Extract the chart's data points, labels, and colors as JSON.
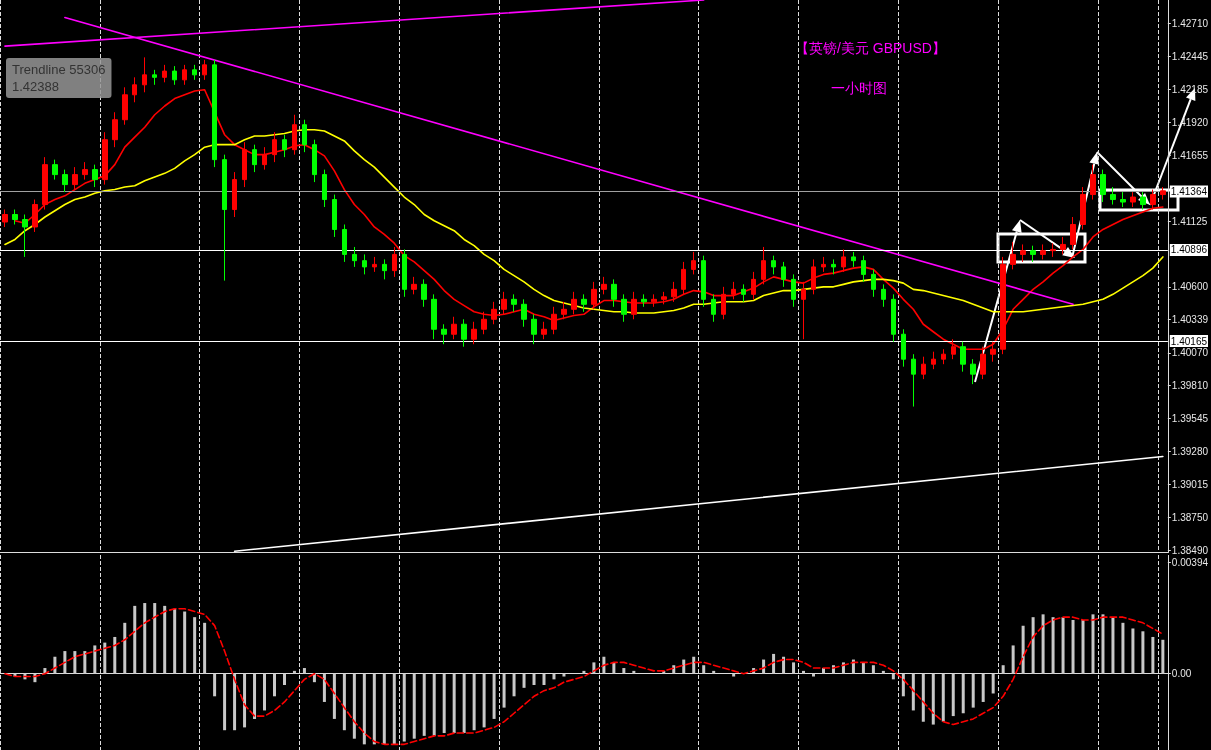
{
  "chart_data": [
    {
      "type": "candlestick",
      "title": "【英镑/美元 GBPUSD】",
      "subtitle": "一小时图",
      "annotations": [
        "Trendline 55306\n1.42388"
      ],
      "categories": [
        null,
        null,
        null,
        null,
        null,
        null,
        null,
        null,
        null,
        null,
        null,
        null,
        null,
        null,
        null,
        null,
        null,
        null,
        null,
        null,
        null,
        null,
        null,
        null,
        null,
        null,
        null,
        null,
        null,
        null,
        null,
        null,
        null,
        null,
        null,
        null,
        null,
        null,
        null,
        null,
        null,
        null,
        null,
        null,
        null,
        null,
        null,
        null,
        null,
        null,
        null,
        null,
        null,
        null,
        null,
        null,
        null,
        null,
        null,
        null,
        null,
        null,
        null,
        null,
        null,
        null,
        null,
        null,
        null,
        null,
        null,
        null,
        null,
        null,
        null,
        null,
        null,
        null,
        null,
        null,
        null,
        null,
        null,
        null,
        null,
        null,
        null,
        null,
        null,
        null,
        null,
        null,
        null,
        null,
        null,
        null,
        null,
        null,
        null,
        null,
        null,
        null,
        null,
        null,
        null,
        null,
        null,
        null,
        null,
        null,
        null,
        null,
        null,
        null,
        null,
        null,
        null
      ],
      "ohlc": [
        [
          1.4112,
          1.4122,
          1.4108,
          1.4118
        ],
        [
          1.4118,
          1.4122,
          1.411,
          1.4114
        ],
        [
          1.4114,
          1.4118,
          1.4084,
          1.4108
        ],
        [
          1.4108,
          1.413,
          1.4104,
          1.4126
        ],
        [
          1.4126,
          1.4164,
          1.4122,
          1.4158
        ],
        [
          1.4158,
          1.4162,
          1.4146,
          1.415
        ],
        [
          1.415,
          1.4154,
          1.4136,
          1.4142
        ],
        [
          1.4142,
          1.4156,
          1.4138,
          1.415
        ],
        [
          1.415,
          1.416,
          1.4146,
          1.4154
        ],
        [
          1.4154,
          1.4158,
          1.414,
          1.4146
        ],
        [
          1.4146,
          1.4184,
          1.4142,
          1.4178
        ],
        [
          1.4178,
          1.42,
          1.4172,
          1.4194
        ],
        [
          1.4194,
          1.422,
          1.419,
          1.4214
        ],
        [
          1.4214,
          1.4228,
          1.4208,
          1.4222
        ],
        [
          1.4222,
          1.4244,
          1.4216,
          1.423
        ],
        [
          1.423,
          1.4234,
          1.4222,
          1.4228
        ],
        [
          1.4228,
          1.4238,
          1.4224,
          1.4233
        ],
        [
          1.4233,
          1.4237,
          1.4222,
          1.4226
        ],
        [
          1.4226,
          1.4238,
          1.4222,
          1.4234
        ],
        [
          1.4234,
          1.4238,
          1.4226,
          1.423
        ],
        [
          1.423,
          1.4242,
          1.4226,
          1.4238
        ],
        [
          1.4238,
          1.4242,
          1.4156,
          1.4162
        ],
        [
          1.4162,
          1.4166,
          1.4065,
          1.4122
        ],
        [
          1.4122,
          1.4152,
          1.4116,
          1.4146
        ],
        [
          1.4146,
          1.4176,
          1.414,
          1.417
        ],
        [
          1.417,
          1.4174,
          1.4152,
          1.4158
        ],
        [
          1.4158,
          1.4172,
          1.4154,
          1.4166
        ],
        [
          1.4166,
          1.4184,
          1.416,
          1.4178
        ],
        [
          1.4178,
          1.4182,
          1.4164,
          1.417
        ],
        [
          1.417,
          1.4198,
          1.4166,
          1.419
        ],
        [
          1.419,
          1.4194,
          1.4168,
          1.4174
        ],
        [
          1.4174,
          1.4178,
          1.4144,
          1.415
        ],
        [
          1.415,
          1.4154,
          1.4124,
          1.413
        ],
        [
          1.413,
          1.4134,
          1.41,
          1.4106
        ],
        [
          1.4106,
          1.411,
          1.408,
          1.4086
        ],
        [
          1.4086,
          1.4092,
          1.4076,
          1.4081
        ],
        [
          1.4081,
          1.4086,
          1.407,
          1.4076
        ],
        [
          1.4076,
          1.4084,
          1.4072,
          1.4078
        ],
        [
          1.4078,
          1.4082,
          1.4066,
          1.4073
        ],
        [
          1.4073,
          1.4092,
          1.4068,
          1.4086
        ],
        [
          1.4086,
          1.409,
          1.4052,
          1.4058
        ],
        [
          1.4058,
          1.4068,
          1.4054,
          1.4062
        ],
        [
          1.4062,
          1.4066,
          1.4044,
          1.405
        ],
        [
          1.405,
          1.4054,
          1.4018,
          1.4026
        ],
        [
          1.4026,
          1.403,
          1.4014,
          1.4022
        ],
        [
          1.4022,
          1.4036,
          1.4018,
          1.403
        ],
        [
          1.403,
          1.4034,
          1.4012,
          1.4018
        ],
        [
          1.4018,
          1.4032,
          1.4014,
          1.4026
        ],
        [
          1.4026,
          1.404,
          1.4022,
          1.4034
        ],
        [
          1.4034,
          1.4048,
          1.403,
          1.4042
        ],
        [
          1.4042,
          1.4056,
          1.4038,
          1.405
        ],
        [
          1.405,
          1.4054,
          1.404,
          1.4046
        ],
        [
          1.4046,
          1.405,
          1.4028,
          1.4034
        ],
        [
          1.4034,
          1.4038,
          1.4014,
          1.4022
        ],
        [
          1.4022,
          1.4032,
          1.4018,
          1.4026
        ],
        [
          1.4026,
          1.4044,
          1.4022,
          1.4038
        ],
        [
          1.4038,
          1.4048,
          1.4034,
          1.4042
        ],
        [
          1.4042,
          1.4056,
          1.4038,
          1.405
        ],
        [
          1.405,
          1.4054,
          1.404,
          1.4046
        ],
        [
          1.4046,
          1.4064,
          1.4042,
          1.4058
        ],
        [
          1.4058,
          1.4068,
          1.4054,
          1.4062
        ],
        [
          1.4062,
          1.4066,
          1.4044,
          1.405
        ],
        [
          1.405,
          1.4054,
          1.4032,
          1.4038
        ],
        [
          1.4038,
          1.4056,
          1.4034,
          1.405
        ],
        [
          1.405,
          1.4054,
          1.4044,
          1.4048
        ],
        [
          1.4048,
          1.4054,
          1.4044,
          1.405
        ],
        [
          1.405,
          1.4056,
          1.4046,
          1.4052
        ],
        [
          1.4052,
          1.4064,
          1.4048,
          1.4058
        ],
        [
          1.4058,
          1.408,
          1.4054,
          1.4074
        ],
        [
          1.4074,
          1.4088,
          1.407,
          1.4081
        ],
        [
          1.4081,
          1.4085,
          1.4044,
          1.405
        ],
        [
          1.405,
          1.4054,
          1.4032,
          1.4038
        ],
        [
          1.4038,
          1.406,
          1.4034,
          1.4054
        ],
        [
          1.4054,
          1.4064,
          1.405,
          1.4058
        ],
        [
          1.4058,
          1.4062,
          1.4048,
          1.4054
        ],
        [
          1.4054,
          1.4072,
          1.405,
          1.4066
        ],
        [
          1.4066,
          1.4092,
          1.4062,
          1.4081
        ],
        [
          1.4081,
          1.4085,
          1.407,
          1.4076
        ],
        [
          1.4076,
          1.408,
          1.406,
          1.4066
        ],
        [
          1.4066,
          1.407,
          1.4044,
          1.405
        ],
        [
          1.405,
          1.4064,
          1.4018,
          1.4058
        ],
        [
          1.4058,
          1.4082,
          1.4054,
          1.4076
        ],
        [
          1.4076,
          1.4084,
          1.4072,
          1.4078
        ],
        [
          1.4078,
          1.4082,
          1.407,
          1.4076
        ],
        [
          1.4076,
          1.409,
          1.4072,
          1.4084
        ],
        [
          1.4084,
          1.4088,
          1.4076,
          1.4081
        ],
        [
          1.4081,
          1.4085,
          1.4064,
          1.407
        ],
        [
          1.407,
          1.4074,
          1.4052,
          1.4058
        ],
        [
          1.4058,
          1.4062,
          1.4044,
          1.405
        ],
        [
          1.405,
          1.4054,
          1.4016,
          1.4022
        ],
        [
          1.4022,
          1.4026,
          1.3996,
          1.4002
        ],
        [
          1.4002,
          1.4006,
          1.3964,
          1.399
        ],
        [
          1.399,
          1.4004,
          1.3986,
          1.3998
        ],
        [
          1.3998,
          1.4008,
          1.3994,
          1.4002
        ],
        [
          1.4002,
          1.401,
          1.3998,
          1.4006
        ],
        [
          1.4006,
          1.4018,
          1.4002,
          1.4012
        ],
        [
          1.4012,
          1.4016,
          1.3992,
          1.3998
        ],
        [
          1.3998,
          1.4002,
          1.3982,
          1.399
        ],
        [
          1.399,
          1.4012,
          1.3986,
          1.4006
        ],
        [
          1.4006,
          1.4016,
          1.4,
          1.401
        ],
        [
          1.401,
          1.4084,
          1.4006,
          1.4078
        ],
        [
          1.4078,
          1.4096,
          1.4074,
          1.4086
        ],
        [
          1.4086,
          1.4094,
          1.408,
          1.4089
        ],
        [
          1.4089,
          1.4093,
          1.408,
          1.4086
        ],
        [
          1.4086,
          1.4094,
          1.4082,
          1.4089
        ],
        [
          1.4089,
          1.4095,
          1.4084,
          1.409
        ],
        [
          1.409,
          1.41,
          1.4086,
          1.4094
        ],
        [
          1.4094,
          1.4116,
          1.409,
          1.411
        ],
        [
          1.411,
          1.414,
          1.4106,
          1.4134
        ],
        [
          1.4134,
          1.4158,
          1.413,
          1.415
        ],
        [
          1.415,
          1.4154,
          1.4128,
          1.4134
        ],
        [
          1.4134,
          1.414,
          1.4126,
          1.413
        ],
        [
          1.413,
          1.4136,
          1.4124,
          1.4128
        ],
        [
          1.4128,
          1.4136,
          1.4124,
          1.4132
        ],
        [
          1.4132,
          1.4136,
          1.4122,
          1.4126
        ],
        [
          1.4126,
          1.4138,
          1.4122,
          1.4134
        ],
        [
          1.4134,
          1.414,
          1.413,
          1.4137
        ]
      ],
      "colors": [
        "#ff0000",
        "#00ff00",
        "#00ff00",
        "#ff0000",
        "#ff0000",
        "#00ff00",
        "#00ff00",
        "#ff0000",
        "#ff0000",
        "#00ff00",
        "#ff0000",
        "#ff0000",
        "#ff0000",
        "#ff0000",
        "#ff0000",
        "#00ff00",
        "#ff0000",
        "#00ff00",
        "#ff0000",
        "#00ff00",
        "#ff0000",
        "#00ff00",
        "#00ff00",
        "#ff0000",
        "#ff0000",
        "#00ff00",
        "#ff0000",
        "#ff0000",
        "#00ff00",
        "#ff0000",
        "#00ff00",
        "#00ff00",
        "#00ff00",
        "#00ff00",
        "#00ff00",
        "#00ff00",
        "#00ff00",
        "#ff0000",
        "#00ff00",
        "#ff0000",
        "#00ff00",
        "#ff0000",
        "#00ff00",
        "#00ff00",
        "#00ff00",
        "#ff0000",
        "#00ff00",
        "#ff0000",
        "#ff0000",
        "#ff0000",
        "#ff0000",
        "#00ff00",
        "#00ff00",
        "#00ff00",
        "#ff0000",
        "#ff0000",
        "#ff0000",
        "#ff0000",
        "#00ff00",
        "#ff0000",
        "#ff0000",
        "#00ff00",
        "#00ff00",
        "#ff0000",
        "#00ff00",
        "#ff0000",
        "#ff0000",
        "#ff0000",
        "#ff0000",
        "#ff0000",
        "#00ff00",
        "#00ff00",
        "#ff0000",
        "#ff0000",
        "#00ff00",
        "#ff0000",
        "#ff0000",
        "#00ff00",
        "#00ff00",
        "#00ff00",
        "#ff0000",
        "#ff0000",
        "#ff0000",
        "#00ff00",
        "#ff0000",
        "#00ff00",
        "#00ff00",
        "#00ff00",
        "#00ff00",
        "#00ff00",
        "#00ff00",
        "#00ff00",
        "#ff0000",
        "#ff0000",
        "#ff0000",
        "#ff0000",
        "#00ff00",
        "#00ff00",
        "#ff0000",
        "#ff0000",
        "#ff0000",
        "#ff0000",
        "#ff0000",
        "#00ff00",
        "#ff0000",
        "#ff0000",
        "#ff0000",
        "#ff0000",
        "#ff0000",
        "#ff0000",
        "#00ff00",
        "#00ff00",
        "#00ff00",
        "#ff0000",
        "#00ff00",
        "#ff0000",
        "#ff0000"
      ],
      "series": [
        {
          "type": "line",
          "color": "#ff0000",
          "values": [
            null,
            1.4113,
            1.4111,
            1.4118,
            1.4126,
            1.413,
            1.4133,
            1.4138,
            1.4143,
            1.4146,
            1.4149,
            1.4158,
            1.4172,
            1.418,
            1.4188,
            1.4198,
            1.4205,
            1.4211,
            1.4214,
            1.4217,
            1.4218,
            null,
            1.4182,
            1.4174,
            1.417,
            1.4166,
            1.4166,
            1.4168,
            1.417,
            1.4173,
            1.4174,
            1.417,
            1.4165,
            1.4153,
            1.4138,
            1.4126,
            1.4118,
            1.4108,
            1.4102,
            1.4095,
            1.4085,
            1.408,
            1.4073,
            1.4066,
            1.4057,
            1.405,
            1.4045,
            1.404,
            1.4038,
            1.4037,
            1.4038,
            1.404,
            1.4042,
            1.4038,
            1.4036,
            1.4033,
            1.4035,
            1.4037,
            1.4038,
            1.4044,
            1.4049,
            1.4049,
            1.4048,
            1.4047,
            1.4047,
            1.4047,
            1.4048,
            1.405,
            1.4054,
            1.4057,
            1.4056,
            1.4053,
            1.4053,
            1.4053,
            1.4056,
            1.4059,
            1.4064,
            1.4068,
            1.4066,
            1.4064,
            1.4063,
            1.4067,
            1.407,
            1.4071,
            1.4073,
            1.4075,
            1.4076,
            1.4074,
            1.4066,
            1.4059,
            1.405,
            1.4042,
            1.403,
            1.4024,
            1.4018,
            1.4014,
            1.401,
            1.401,
            1.401,
            1.4014,
            1.4026,
            1.4042,
            1.405,
            1.4058,
            1.4064,
            1.4071,
            1.4077,
            1.4084,
            1.409,
            1.41,
            1.4106,
            1.411,
            1.4114,
            1.4117,
            1.412,
            1.4123,
            1.4124
          ]
        },
        {
          "type": "line",
          "color": "#ffff00",
          "values": [
            1.4094,
            1.4098,
            1.4105,
            1.411,
            1.4116,
            1.4121,
            1.4126,
            1.413,
            1.4132,
            1.4135,
            1.4137,
            1.4138,
            1.414,
            1.4141,
            1.4145,
            1.4148,
            1.4151,
            1.4155,
            1.4161,
            1.4166,
            1.4172,
            1.4174,
            1.4174,
            1.4174,
            1.4178,
            1.4181,
            1.4181,
            1.4182,
            1.4183,
            1.4185,
            1.4186,
            1.4186,
            1.4185,
            1.4181,
            1.4177,
            1.4169,
            1.4162,
            1.4156,
            1.4148,
            1.414,
            1.4132,
            1.4126,
            1.4118,
            1.4113,
            1.4109,
            1.4105,
            1.4098,
            1.4093,
            1.4086,
            1.4081,
            1.4074,
            1.4069,
            1.4064,
            1.4058,
            1.4053,
            1.4049,
            1.4047,
            1.4045,
            1.4043,
            1.4042,
            1.4041,
            1.404,
            1.404,
            1.4039,
            1.4039,
            1.4039,
            1.404,
            1.4041,
            1.4043,
            1.4046,
            1.4046,
            1.4047,
            1.4048,
            1.4048,
            1.4048,
            1.4049,
            1.4053,
            1.4055,
            1.4057,
            1.4057,
            1.4058,
            1.4059,
            1.406,
            1.406,
            1.4062,
            1.4064,
            1.4065,
            1.4066,
            1.4066,
            1.4065,
            1.4063,
            1.4058,
            1.4057,
            1.4055,
            1.4053,
            1.4051,
            1.4049,
            1.4046,
            1.4043,
            1.404,
            1.404,
            1.404,
            1.404,
            1.4041,
            1.4042,
            1.4043,
            1.4044,
            1.4045,
            1.4046,
            1.4048,
            1.405,
            1.4054,
            1.4059,
            1.4064,
            1.4069,
            1.4075,
            1.4084
          ]
        },
        {
          "type": "line",
          "color": "#ff00ff",
          "values": [
            1.4253,
            null,
            null,
            null,
            null,
            null,
            null,
            null,
            null,
            null,
            null,
            null,
            null,
            null,
            null,
            null,
            null,
            null,
            null,
            null,
            null,
            null,
            null,
            null,
            null,
            null,
            null,
            null,
            null,
            null,
            null,
            null,
            null,
            null,
            null,
            null,
            null,
            null,
            null,
            null,
            null,
            null,
            null,
            null,
            null,
            null,
            null,
            null,
            null,
            null,
            null,
            null,
            null,
            null,
            null,
            null,
            null,
            null,
            null,
            null,
            null,
            null,
            null,
            null,
            null,
            null,
            null,
            null,
            null,
            null,
            1.429,
            null,
            null,
            null,
            null,
            null,
            null,
            null,
            null,
            null,
            null,
            null,
            null,
            null,
            null,
            null,
            null,
            null,
            null,
            null,
            null,
            null,
            null,
            null,
            null,
            null,
            null,
            null,
            null,
            null,
            null,
            null,
            null,
            null,
            null,
            null,
            null,
            null,
            null,
            null,
            null,
            null,
            null,
            null,
            null,
            null,
            null
          ]
        },
        {
          "type": "line",
          "color": "#ff00ff",
          "values": [
            null,
            null,
            null,
            null,
            null,
            null,
            1.4276,
            null,
            null,
            null,
            null,
            null,
            null,
            null,
            null,
            null,
            null,
            null,
            null,
            null,
            null,
            null,
            null,
            null,
            null,
            null,
            null,
            null,
            null,
            null,
            null,
            null,
            null,
            null,
            null,
            null,
            null,
            null,
            null,
            null,
            null,
            null,
            null,
            null,
            null,
            null,
            null,
            null,
            null,
            null,
            null,
            null,
            null,
            null,
            null,
            null,
            null,
            null,
            null,
            null,
            null,
            null,
            null,
            null,
            null,
            null,
            null,
            null,
            null,
            null,
            null,
            null,
            null,
            null,
            null,
            null,
            null,
            null,
            null,
            null,
            null,
            null,
            null,
            null,
            null,
            null,
            null,
            null,
            null,
            null,
            null,
            null,
            null,
            null,
            null,
            null,
            null,
            null,
            null,
            null,
            null,
            null,
            null,
            null,
            null,
            null,
            null,
            1.4046,
            null,
            null,
            null,
            null,
            null,
            null,
            null,
            null,
            null
          ]
        },
        {
          "type": "line",
          "color": "#ffffff",
          "values": [
            null,
            null,
            null,
            null,
            null,
            null,
            null,
            null,
            null,
            null,
            null,
            null,
            null,
            null,
            null,
            null,
            null,
            null,
            null,
            null,
            null,
            null,
            null,
            1.3848,
            null,
            null,
            null,
            null,
            null,
            null,
            null,
            null,
            null,
            null,
            null,
            null,
            null,
            null,
            null,
            null,
            null,
            null,
            null,
            null,
            null,
            null,
            null,
            null,
            null,
            null,
            null,
            null,
            null,
            null,
            null,
            null,
            null,
            null,
            null,
            null,
            null,
            null,
            null,
            null,
            null,
            null,
            null,
            null,
            null,
            null,
            null,
            null,
            null,
            null,
            null,
            null,
            null,
            null,
            null,
            null,
            null,
            null,
            null,
            null,
            null,
            null,
            null,
            null,
            null,
            null,
            null,
            null,
            null,
            null,
            null,
            null,
            null,
            null,
            null,
            null,
            null,
            null,
            null,
            null,
            null,
            null,
            null,
            null,
            null,
            null,
            null,
            null,
            null,
            null,
            null,
            null,
            1.3924
          ]
        }
      ],
      "ylim": [
        1.3847,
        1.429
      ],
      "yticks": [
        {
          "value": 1.4271,
          "label": "1.42710"
        },
        {
          "value": 1.42445,
          "label": "1.42445"
        },
        {
          "value": 1.42185,
          "label": "1.42185"
        },
        {
          "value": 1.4192,
          "label": "1.41920"
        },
        {
          "value": 1.41655,
          "label": "1.41655"
        },
        {
          "value": 1.41125,
          "label": "1.41125"
        },
        {
          "value": 1.406,
          "label": "1.40600"
        },
        {
          "value": 1.40339,
          "label": "1.40339"
        },
        {
          "value": 1.4007,
          "label": "1.40070"
        },
        {
          "value": 1.3981,
          "label": "1.39810"
        },
        {
          "value": 1.39545,
          "label": "1.39545"
        },
        {
          "value": 1.3928,
          "label": "1.39280"
        },
        {
          "value": 1.39015,
          "label": "1.39015"
        },
        {
          "value": 1.3875,
          "label": "1.38750"
        },
        {
          "value": 1.3849,
          "label": "1.38490"
        }
      ],
      "ref_lines": [
        {
          "axis": "y",
          "value": 1.41364,
          "label": "1.41364",
          "color": "#a0a0a0"
        },
        {
          "axis": "y",
          "value": 1.40896,
          "label": "1.40896",
          "color": "#ffffff"
        },
        {
          "axis": "y",
          "value": 1.40165,
          "label": "1.40165",
          "color": "#ffffff"
        }
      ],
      "marker": "none",
      "tick_labels": "y"
    },
    {
      "type": "bar",
      "categories": [
        null,
        null,
        null,
        null,
        null,
        null,
        null,
        null,
        null,
        null,
        null,
        null,
        null,
        null,
        null,
        null,
        null,
        null,
        null,
        null,
        null,
        null,
        null,
        null,
        null,
        null,
        null,
        null,
        null,
        null,
        null,
        null,
        null,
        null,
        null,
        null,
        null,
        null,
        null,
        null,
        null,
        null,
        null,
        null,
        null,
        null,
        null,
        null,
        null,
        null,
        null,
        null,
        null,
        null,
        null,
        null,
        null,
        null,
        null,
        null,
        null,
        null,
        null,
        null,
        null,
        null,
        null,
        null,
        null,
        null,
        null,
        null,
        null,
        null,
        null,
        null,
        null,
        null,
        null,
        null,
        null,
        null,
        null,
        null,
        null,
        null,
        null,
        null,
        null,
        null,
        null,
        null,
        null,
        null,
        null,
        null,
        null,
        null,
        null,
        null,
        null,
        null,
        null,
        null,
        null,
        null,
        null,
        null,
        null,
        null,
        null,
        null,
        null,
        null,
        null,
        null,
        null
      ],
      "series": [
        {
          "color": "#c8c8c8",
          "values": [
            0,
            -0.0001,
            -0.0002,
            -0.0003,
            0.0002,
            0.0006,
            0.0008,
            0.0008,
            0.0008,
            0.001,
            0.0011,
            0.0013,
            0.0018,
            0.0024,
            0.0025,
            0.0025,
            0.0024,
            0.0023,
            0.0022,
            0.002,
            0.0018,
            -0.0008,
            -0.002,
            -0.002,
            -0.0019,
            -0.0016,
            -0.0013,
            -0.0008,
            -0.0004,
            0.0001,
            0.0002,
            -0.0003,
            -0.001,
            -0.0016,
            -0.002,
            -0.0023,
            -0.0025,
            -0.0025,
            -0.0025,
            -0.0025,
            -0.0024,
            -0.0023,
            -0.0022,
            -0.0022,
            -0.0021,
            -0.0021,
            -0.0021,
            -0.002,
            -0.0019,
            -0.0016,
            -0.0012,
            -0.0008,
            -0.0005,
            -0.0004,
            -0.0004,
            -0.0002,
            -0.0001,
            0,
            0.0001,
            0.0004,
            0.0006,
            0.0004,
            0.0002,
            0.0001,
            0,
            0,
            0.0001,
            0.0003,
            0.0005,
            0.0006,
            0.0003,
            0.0001,
            0,
            -0.0001,
            0,
            0.0002,
            0.0005,
            0.0007,
            0.0006,
            0.0004,
            0.0001,
            -0.0001,
            0.0002,
            0.0003,
            0.0004,
            0.0005,
            0.0004,
            0.0003,
            0.0001,
            -0.0002,
            -0.0008,
            -0.0013,
            -0.0017,
            -0.0018,
            -0.0017,
            -0.0015,
            -0.0014,
            -0.0012,
            -0.001,
            -0.0007,
            0.0003,
            0.001,
            0.0017,
            0.002,
            0.0021,
            0.002,
            0.002,
            0.0019,
            0.0019,
            0.0021,
            0.0021,
            0.002,
            0.0018,
            0.0016,
            0.0015,
            0.0013,
            0.0012
          ]
        },
        {
          "type": "line",
          "color": "#ff0000",
          "line_style": "dashed",
          "values": [
            0,
            -0.0001,
            -0.0001,
            -0.0001,
            0,
            0.0002,
            0.0004,
            0.0006,
            0.0007,
            0.0008,
            0.0009,
            0.001,
            0.0012,
            0.0015,
            0.0018,
            0.002,
            0.0022,
            0.0023,
            0.0023,
            0.0022,
            0.0021,
            0.0017,
            0.0008,
            -0.0002,
            -0.0011,
            -0.0015,
            -0.0015,
            -0.0013,
            -0.001,
            -0.0006,
            -0.0002,
            0,
            -0.0002,
            -0.0007,
            -0.0012,
            -0.0017,
            -0.0021,
            -0.0024,
            -0.0025,
            -0.0025,
            -0.0025,
            -0.0024,
            -0.0023,
            -0.0022,
            -0.0022,
            -0.0021,
            -0.0021,
            -0.0021,
            -0.002,
            -0.0019,
            -0.0017,
            -0.0014,
            -0.0011,
            -0.0008,
            -0.0006,
            -0.0005,
            -0.0003,
            -0.0002,
            -0.0001,
            0.0001,
            0.0003,
            0.0004,
            0.0004,
            0.0003,
            0.0002,
            0.0001,
            0.0001,
            0.0002,
            0.0003,
            0.0004,
            0.0004,
            0.0003,
            0.0002,
            0.0001,
            0,
            0.0001,
            0.0002,
            0.0004,
            0.0005,
            0.0005,
            0.0004,
            0.0002,
            0.0002,
            0.0002,
            0.0003,
            0.0004,
            0.0004,
            0.0004,
            0.0003,
            0.0001,
            -0.0002,
            -0.0006,
            -0.001,
            -0.0014,
            -0.0017,
            -0.0018,
            -0.0017,
            -0.0016,
            -0.0014,
            -0.0012,
            -0.0008,
            -0.0002,
            0.0006,
            0.0013,
            0.0017,
            0.0019,
            0.002,
            0.002,
            0.0019,
            0.0019,
            0.002,
            0.002,
            0.002,
            0.0019,
            0.0018,
            0.0016,
            0.0014
          ]
        }
      ],
      "ylim": [
        -0.0027,
        0.0042
      ],
      "yticks": [
        {
          "value": 0.00394,
          "label": "0.00394"
        },
        {
          "value": 0,
          "label": "0.00"
        }
      ],
      "marker": "none",
      "tick_labels": "y"
    }
  ]
}
